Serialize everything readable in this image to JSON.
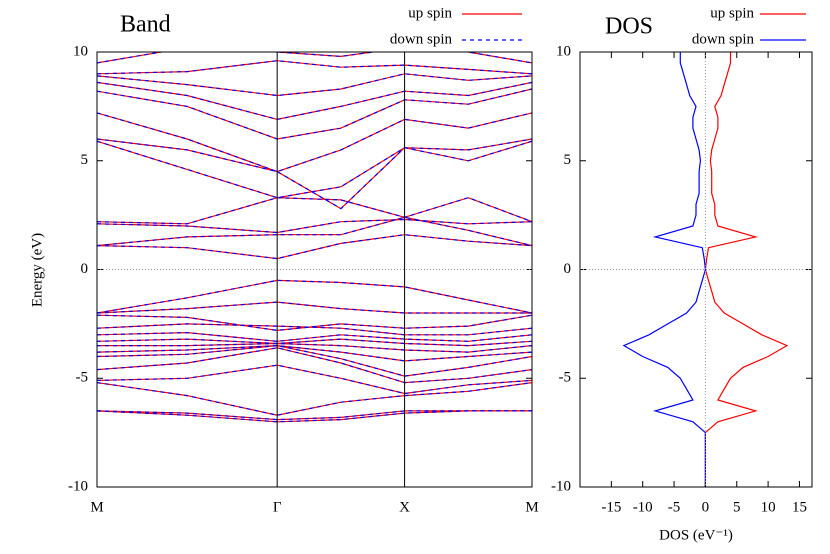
{
  "chart_data": [
    {
      "type": "band",
      "title": "Band",
      "ylabel": "Energy (eV)",
      "x": [
        0,
        0.707,
        1.414,
        1.914,
        2.414,
        2.914,
        3.414
      ],
      "xlim": [
        0,
        3.414
      ],
      "xticks": [
        {
          "value": 0,
          "label": "M"
        },
        {
          "value": 1.414,
          "label": "Γ"
        },
        {
          "value": 2.414,
          "label": "X"
        },
        {
          "value": 3.414,
          "label": "M"
        }
      ],
      "ylim": [
        -10,
        10
      ],
      "yticks": [
        -10,
        -5,
        0,
        5,
        10
      ],
      "zero_line": true,
      "series": [
        {
          "name": "up spin",
          "color": "#ff0000",
          "dash": false,
          "bands": [
            [
              -6.5,
              -6.6,
              -6.9,
              -6.8,
              -6.5,
              -6.5,
              -6.5
            ],
            [
              -6.5,
              -6.7,
              -7.0,
              -6.9,
              -6.6,
              -6.5,
              -6.5
            ],
            [
              -5.2,
              -5.8,
              -6.7,
              -6.1,
              -5.8,
              -5.6,
              -5.2
            ],
            [
              -5.1,
              -5.0,
              -4.4,
              -5.0,
              -5.7,
              -5.3,
              -5.1
            ],
            [
              -4.6,
              -4.3,
              -3.6,
              -4.3,
              -5.2,
              -5.0,
              -4.6
            ],
            [
              -4.0,
              -3.9,
              -3.5,
              -4.1,
              -4.9,
              -4.5,
              -4.0
            ],
            [
              -3.8,
              -3.7,
              -3.5,
              -3.8,
              -4.2,
              -4.0,
              -3.8
            ],
            [
              -3.5,
              -3.5,
              -3.4,
              -3.5,
              -3.7,
              -3.8,
              -3.5
            ],
            [
              -3.3,
              -3.2,
              -3.4,
              -3.2,
              -3.4,
              -3.5,
              -3.3
            ],
            [
              -3.0,
              -2.9,
              -3.3,
              -3.0,
              -3.2,
              -3.3,
              -3.0
            ],
            [
              -2.7,
              -2.5,
              -2.6,
              -2.7,
              -3.0,
              -3.0,
              -2.7
            ],
            [
              -2.1,
              -2.2,
              -2.8,
              -2.5,
              -2.7,
              -2.6,
              -2.1
            ],
            [
              -2.0,
              -1.8,
              -1.5,
              -1.8,
              -2.0,
              -2.0,
              -2.0
            ],
            [
              -2.0,
              -1.3,
              -0.5,
              -0.6,
              -0.8,
              -1.4,
              -2.0
            ],
            [
              1.1,
              1.0,
              0.5,
              1.2,
              1.6,
              1.3,
              1.1
            ],
            [
              1.1,
              1.5,
              1.6,
              1.6,
              2.4,
              1.8,
              1.1
            ],
            [
              2.1,
              2.0,
              1.7,
              2.2,
              2.3,
              2.1,
              2.2
            ],
            [
              2.2,
              2.1,
              3.3,
              3.2,
              2.4,
              3.3,
              2.2
            ],
            [
              5.9,
              4.6,
              3.3,
              3.8,
              5.6,
              5.0,
              5.9
            ],
            [
              6.0,
              5.5,
              4.5,
              2.8,
              5.6,
              5.5,
              6.0
            ],
            [
              7.2,
              6.0,
              4.5,
              5.5,
              6.9,
              6.5,
              7.2
            ],
            [
              8.2,
              7.5,
              6.0,
              6.5,
              7.8,
              7.6,
              8.3
            ],
            [
              8.6,
              8.0,
              6.9,
              7.5,
              8.2,
              8.0,
              8.6
            ],
            [
              8.9,
              8.5,
              8.0,
              8.3,
              9.0,
              8.7,
              8.9
            ],
            [
              9.0,
              9.1,
              9.6,
              9.3,
              9.4,
              9.2,
              9.0
            ],
            [
              9.5,
              10.2,
              10.0,
              9.8,
              10.2,
              10.0,
              9.5
            ]
          ]
        },
        {
          "name": "down spin",
          "color": "#0000ff",
          "dash": true,
          "bands": [
            [
              -6.5,
              -6.6,
              -6.9,
              -6.8,
              -6.5,
              -6.5,
              -6.5
            ],
            [
              -6.5,
              -6.7,
              -7.0,
              -6.9,
              -6.6,
              -6.5,
              -6.5
            ],
            [
              -5.2,
              -5.8,
              -6.7,
              -6.1,
              -5.8,
              -5.6,
              -5.2
            ],
            [
              -5.1,
              -5.0,
              -4.4,
              -5.0,
              -5.7,
              -5.3,
              -5.1
            ],
            [
              -4.6,
              -4.3,
              -3.6,
              -4.3,
              -5.2,
              -5.0,
              -4.6
            ],
            [
              -4.0,
              -3.9,
              -3.5,
              -4.1,
              -4.9,
              -4.5,
              -4.0
            ],
            [
              -3.8,
              -3.7,
              -3.5,
              -3.8,
              -4.2,
              -4.0,
              -3.8
            ],
            [
              -3.5,
              -3.5,
              -3.4,
              -3.5,
              -3.7,
              -3.8,
              -3.5
            ],
            [
              -3.3,
              -3.2,
              -3.4,
              -3.2,
              -3.4,
              -3.5,
              -3.3
            ],
            [
              -3.0,
              -2.9,
              -3.3,
              -3.0,
              -3.2,
              -3.3,
              -3.0
            ],
            [
              -2.7,
              -2.5,
              -2.6,
              -2.7,
              -3.0,
              -3.0,
              -2.7
            ],
            [
              -2.1,
              -2.2,
              -2.8,
              -2.5,
              -2.7,
              -2.6,
              -2.1
            ],
            [
              -2.0,
              -1.8,
              -1.5,
              -1.8,
              -2.0,
              -2.0,
              -2.0
            ],
            [
              -2.0,
              -1.3,
              -0.5,
              -0.6,
              -0.8,
              -1.4,
              -2.0
            ],
            [
              1.1,
              1.0,
              0.5,
              1.2,
              1.6,
              1.3,
              1.1
            ],
            [
              1.1,
              1.5,
              1.6,
              1.6,
              2.4,
              1.8,
              1.1
            ],
            [
              2.1,
              2.0,
              1.7,
              2.2,
              2.3,
              2.1,
              2.2
            ],
            [
              2.2,
              2.1,
              3.3,
              3.2,
              2.4,
              3.3,
              2.2
            ],
            [
              5.9,
              4.6,
              3.3,
              3.8,
              5.6,
              5.0,
              5.9
            ],
            [
              6.0,
              5.5,
              4.5,
              2.8,
              5.6,
              5.5,
              6.0
            ],
            [
              7.2,
              6.0,
              4.5,
              5.5,
              6.9,
              6.5,
              7.2
            ],
            [
              8.2,
              7.5,
              6.0,
              6.5,
              7.8,
              7.6,
              8.3
            ],
            [
              8.6,
              8.0,
              6.9,
              7.5,
              8.2,
              8.0,
              8.6
            ],
            [
              8.9,
              8.5,
              8.0,
              8.3,
              9.0,
              8.7,
              8.9
            ],
            [
              9.0,
              9.1,
              9.6,
              9.3,
              9.4,
              9.2,
              9.0
            ],
            [
              9.5,
              10.2,
              10.0,
              9.8,
              10.2,
              10.0,
              9.5
            ]
          ]
        }
      ]
    },
    {
      "type": "dos",
      "title": "DOS",
      "xlabel": "DOS (eV⁻¹)",
      "energy": [
        -10,
        -9.5,
        -9,
        -8.5,
        -8,
        -7.5,
        -7,
        -6.5,
        -6,
        -5.5,
        -5,
        -4.5,
        -4,
        -3.5,
        -3,
        -2.5,
        -2,
        -1.5,
        -1,
        -0.5,
        0,
        0.5,
        1,
        1.5,
        2,
        2.5,
        3,
        3.5,
        4,
        4.5,
        5,
        5.5,
        6,
        6.5,
        7,
        7.5,
        8,
        8.5,
        9,
        9.5,
        10
      ],
      "xlim": [
        -20,
        17
      ],
      "xticks": [
        -15,
        -10,
        -5,
        0,
        5,
        10,
        15
      ],
      "ylim": [
        -10,
        10
      ],
      "yticks": [
        -10,
        -5,
        0,
        5,
        10
      ],
      "zero_line": true,
      "series": [
        {
          "name": "up spin",
          "color": "#ff0000",
          "values": [
            0,
            0,
            0,
            0,
            0,
            0,
            2,
            8,
            2,
            3,
            4,
            6,
            10,
            13,
            9,
            6,
            3,
            1.5,
            1,
            0.5,
            0,
            0.2,
            0.5,
            8,
            2,
            1.5,
            1.5,
            1,
            1,
            1,
            0.8,
            1,
            1.5,
            2,
            2,
            1.5,
            2.5,
            3,
            3.5,
            4,
            4
          ]
        },
        {
          "name": "down spin",
          "color": "#0000ff",
          "values": [
            0,
            0,
            0,
            0,
            0,
            0,
            -2,
            -8,
            -2,
            -3,
            -4,
            -6,
            -10,
            -13,
            -9,
            -6,
            -3,
            -1.5,
            -1,
            -0.5,
            0,
            -0.2,
            -0.5,
            -8,
            -2,
            -1.5,
            -1.5,
            -1,
            -1,
            -1,
            -0.8,
            -1,
            -1.5,
            -2,
            -2,
            -1.5,
            -2.5,
            -3,
            -3.5,
            -4,
            -4
          ]
        }
      ]
    }
  ]
}
